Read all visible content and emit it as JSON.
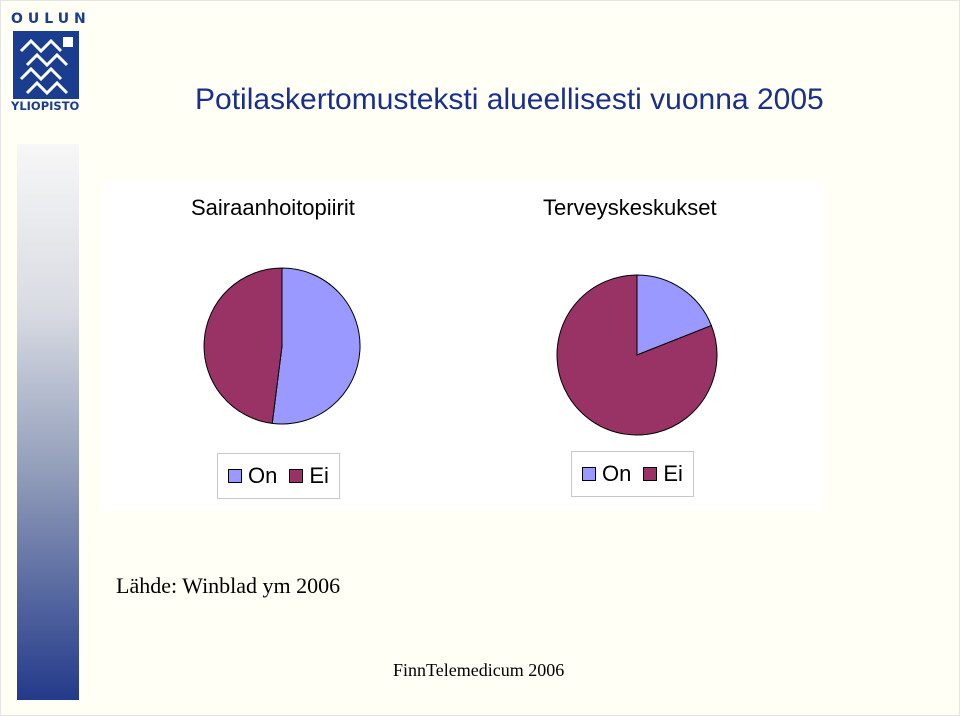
{
  "logo": {
    "top": "OULUN",
    "bottom": "YLIOPISTO"
  },
  "slide": {
    "title": "Potilaskertomusteksti alueellisesti vuonna 2005"
  },
  "chart_data": [
    {
      "type": "pie",
      "title": "Sairaanhoitopiirit",
      "labels": [
        "On",
        "Ei"
      ],
      "values": [
        52,
        48
      ],
      "colors": [
        "#9999ff",
        "#993366"
      ],
      "legend": "bottom"
    },
    {
      "type": "pie",
      "title": "Terveyskeskukset",
      "labels": [
        "On",
        "Ei"
      ],
      "values": [
        19,
        81
      ],
      "colors": [
        "#9999ff",
        "#993366"
      ],
      "legend": "bottom"
    }
  ],
  "source": "Lähde: Winblad ym 2006",
  "footer": "FinnTelemedicum 2006"
}
